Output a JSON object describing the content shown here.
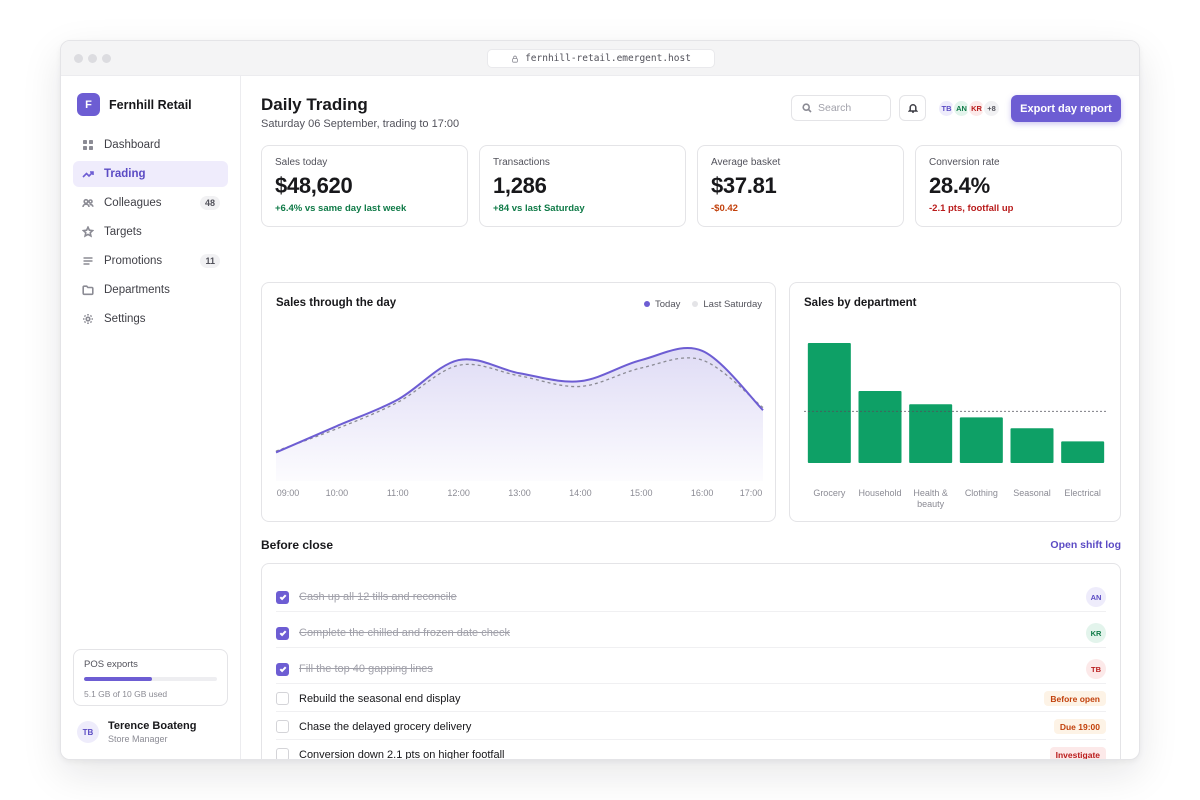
{
  "browser": {
    "url": "fernhill-retail.emergent.host"
  },
  "brand": {
    "logo_letter": "F",
    "name": "Fernhill Retail"
  },
  "sidebar": {
    "items": [
      {
        "label": "Dashboard",
        "icon": "grid-icon"
      },
      {
        "label": "Trading",
        "icon": "trend-icon",
        "active": true
      },
      {
        "label": "Colleagues",
        "icon": "people-icon",
        "badge": "48"
      },
      {
        "label": "Targets",
        "icon": "star-icon"
      },
      {
        "label": "Promotions",
        "icon": "list-icon",
        "badge": "11"
      },
      {
        "label": "Departments",
        "icon": "folder-icon"
      },
      {
        "label": "Settings",
        "icon": "gear-icon"
      }
    ],
    "storage": {
      "title": "POS exports",
      "used_fraction": 0.51,
      "subtitle": "5.1 GB of 10 GB used"
    },
    "user": {
      "initials": "TB",
      "name": "Terence Boateng",
      "role": "Store Manager"
    }
  },
  "header": {
    "title": "Daily Trading",
    "subtitle": "Saturday 06 September, trading to 17:00",
    "search_placeholder": "Search",
    "avatars": [
      "TB",
      "AN",
      "KR"
    ],
    "avatars_more": "+8",
    "export_label": "Export day report"
  },
  "kpis": [
    {
      "label": "Sales today",
      "value": "$48,620",
      "delta": "+6.4% vs same day last week",
      "tone": "positive"
    },
    {
      "label": "Transactions",
      "value": "1,286",
      "delta": "+84 vs last Saturday",
      "tone": "positive"
    },
    {
      "label": "Average basket",
      "value": "$37.81",
      "delta": "-$0.42",
      "tone": "warning"
    },
    {
      "label": "Conversion rate",
      "value": "28.4%",
      "delta": "-2.1 pts, footfall up",
      "tone": "negative"
    }
  ],
  "colors": {
    "accent": "#6d5dd3",
    "positive": "#0f7a47",
    "warning": "#c2410c",
    "negative": "#b91c1c",
    "bar": "#0ea066"
  },
  "chart_data": [
    {
      "type": "area",
      "title": "Sales through the day",
      "x": [
        "09:00",
        "10:00",
        "11:00",
        "12:00",
        "13:00",
        "14:00",
        "15:00",
        "16:00",
        "17:00"
      ],
      "series": [
        {
          "name": "Today",
          "values": [
            8,
            28,
            48,
            78,
            68,
            62,
            78,
            85,
            40
          ]
        },
        {
          "name": "Last Saturday",
          "values": [
            9,
            26,
            46,
            74,
            66,
            58,
            72,
            78,
            42
          ]
        }
      ],
      "legend": "top-right",
      "grid": false
    },
    {
      "type": "bar",
      "title": "Sales by department",
      "categories": [
        "Grocery",
        "Household",
        "Health & beauty",
        "Clothing",
        "Seasonal",
        "Electrical"
      ],
      "category_lines": [
        [
          "Grocery"
        ],
        [
          "Household"
        ],
        [
          "Health &",
          "beauty"
        ],
        [
          "Clothing"
        ],
        [
          "Seasonal"
        ],
        [
          "Electrical"
        ]
      ],
      "values": [
        100,
        60,
        49,
        38,
        29,
        18
      ],
      "reference_value": 43,
      "ylim": [
        0,
        100
      ],
      "grid": false
    }
  ],
  "tasks": {
    "title": "Before close",
    "link_label": "Open shift log",
    "items": [
      {
        "text": "Cash up all 12 tills and reconcile",
        "done": true,
        "assignee": "AN"
      },
      {
        "text": "Complete the chilled and frozen date check",
        "done": true,
        "assignee": "KR"
      },
      {
        "text": "Fill the top 40 gapping lines",
        "done": true,
        "assignee": "TB"
      },
      {
        "text": "Rebuild the seasonal end display",
        "done": false,
        "tag": "Before open"
      },
      {
        "text": "Chase the delayed grocery delivery",
        "done": false,
        "tag": "Due 19:00"
      },
      {
        "text": "Conversion down 2.1 pts on higher footfall",
        "done": false,
        "tag": "Investigate"
      }
    ]
  }
}
